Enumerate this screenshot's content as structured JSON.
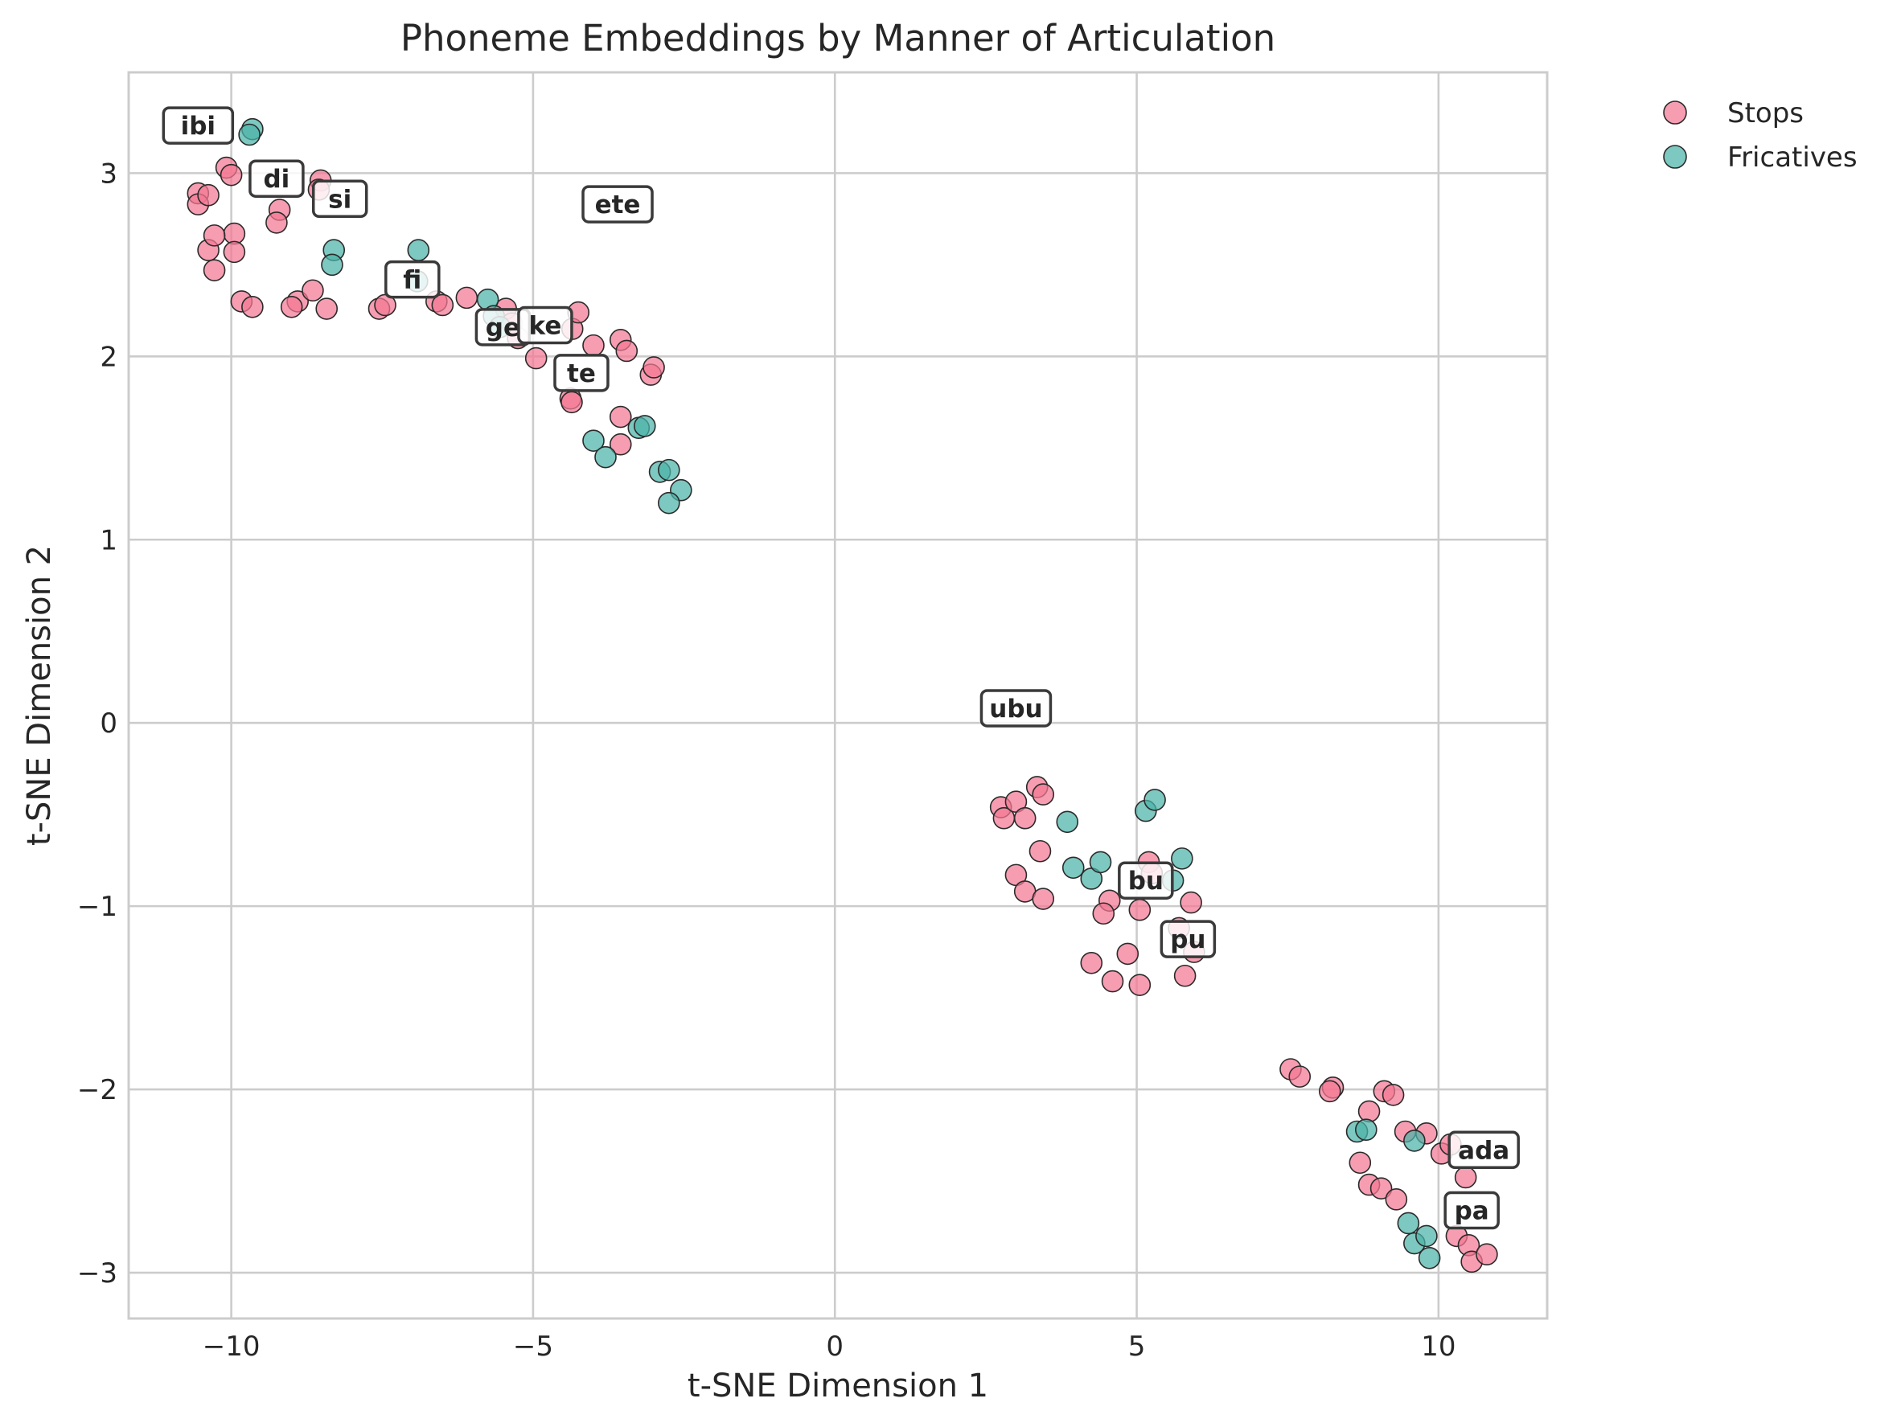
{
  "chart_data": {
    "type": "scatter",
    "title": "Phoneme Embeddings by Manner of Articulation",
    "xlabel": "t-SNE Dimension 1",
    "ylabel": "t-SNE Dimension 2",
    "xlim": [
      -11.7,
      11.8
    ],
    "ylim": [
      -3.25,
      3.55
    ],
    "xticks": [
      -10,
      -5,
      0,
      5,
      10
    ],
    "xtick_labels": [
      "−10",
      "−5",
      "0",
      "5",
      "10"
    ],
    "yticks": [
      -3,
      -2,
      -1,
      0,
      1,
      2,
      3
    ],
    "ytick_labels": [
      "−3",
      "−2",
      "−1",
      "0",
      "1",
      "2",
      "3"
    ],
    "grid": true,
    "legend_position": "outside-top-right",
    "series": [
      {
        "name": "Stops",
        "color": "#f47793",
        "points": [
          [
            -10.55,
            2.89
          ],
          [
            -10.55,
            2.83
          ],
          [
            -10.38,
            2.88
          ],
          [
            -10.08,
            3.03
          ],
          [
            -10.0,
            2.99
          ],
          [
            -9.95,
            2.67
          ],
          [
            -9.95,
            2.57
          ],
          [
            -10.38,
            2.58
          ],
          [
            -10.28,
            2.66
          ],
          [
            -10.28,
            2.47
          ],
          [
            -9.83,
            2.3
          ],
          [
            -9.65,
            2.27
          ],
          [
            -9.2,
            2.8
          ],
          [
            -9.25,
            2.73
          ],
          [
            -8.52,
            2.96
          ],
          [
            -8.55,
            2.91
          ],
          [
            -8.9,
            2.3
          ],
          [
            -9.0,
            2.27
          ],
          [
            -8.65,
            2.36
          ],
          [
            -8.42,
            2.26
          ],
          [
            -7.55,
            2.26
          ],
          [
            -7.45,
            2.28
          ],
          [
            -6.6,
            2.3
          ],
          [
            -6.5,
            2.28
          ],
          [
            -6.1,
            2.32
          ],
          [
            -5.45,
            2.26
          ],
          [
            -5.35,
            2.18
          ],
          [
            -5.25,
            2.1
          ],
          [
            -4.95,
            1.99
          ],
          [
            -4.35,
            2.15
          ],
          [
            -4.25,
            2.24
          ],
          [
            -4.0,
            2.06
          ],
          [
            -3.55,
            2.09
          ],
          [
            -3.45,
            2.03
          ],
          [
            -3.05,
            1.9
          ],
          [
            -3.0,
            1.94
          ],
          [
            -4.38,
            1.77
          ],
          [
            -4.36,
            1.75
          ],
          [
            -3.55,
            1.67
          ],
          [
            -3.55,
            1.52
          ],
          [
            2.75,
            -0.46
          ],
          [
            2.8,
            -0.52
          ],
          [
            3.0,
            -0.43
          ],
          [
            3.15,
            -0.52
          ],
          [
            3.35,
            -0.35
          ],
          [
            3.45,
            -0.39
          ],
          [
            3.4,
            -0.7
          ],
          [
            3.0,
            -0.83
          ],
          [
            3.15,
            -0.92
          ],
          [
            3.45,
            -0.96
          ],
          [
            4.55,
            -0.97
          ],
          [
            4.45,
            -1.04
          ],
          [
            5.05,
            -1.02
          ],
          [
            5.2,
            -0.76
          ],
          [
            5.25,
            -0.82
          ],
          [
            5.7,
            -1.12
          ],
          [
            5.9,
            -0.98
          ],
          [
            5.95,
            -1.25
          ],
          [
            4.85,
            -1.26
          ],
          [
            4.25,
            -1.31
          ],
          [
            4.6,
            -1.41
          ],
          [
            5.05,
            -1.43
          ],
          [
            5.8,
            -1.38
          ],
          [
            7.55,
            -1.89
          ],
          [
            7.7,
            -1.93
          ],
          [
            8.25,
            -1.99
          ],
          [
            8.2,
            -2.01
          ],
          [
            9.1,
            -2.01
          ],
          [
            9.25,
            -2.03
          ],
          [
            8.85,
            -2.12
          ],
          [
            9.45,
            -2.23
          ],
          [
            9.8,
            -2.24
          ],
          [
            10.05,
            -2.35
          ],
          [
            10.2,
            -2.3
          ],
          [
            10.45,
            -2.48
          ],
          [
            8.7,
            -2.4
          ],
          [
            8.85,
            -2.52
          ],
          [
            9.05,
            -2.54
          ],
          [
            9.3,
            -2.6
          ],
          [
            10.3,
            -2.8
          ],
          [
            10.5,
            -2.85
          ],
          [
            10.55,
            -2.94
          ],
          [
            10.8,
            -2.9
          ]
        ]
      },
      {
        "name": "Fricatives",
        "color": "#4bb3a7",
        "points": [
          [
            -9.65,
            3.24
          ],
          [
            -9.7,
            3.21
          ],
          [
            -8.3,
            2.58
          ],
          [
            -8.33,
            2.5
          ],
          [
            -6.9,
            2.58
          ],
          [
            -6.92,
            2.41
          ],
          [
            -5.75,
            2.31
          ],
          [
            -5.65,
            2.22
          ],
          [
            -5.55,
            2.16
          ],
          [
            -4.0,
            1.54
          ],
          [
            -3.8,
            1.45
          ],
          [
            -3.25,
            1.61
          ],
          [
            -3.15,
            1.62
          ],
          [
            -2.9,
            1.37
          ],
          [
            -2.75,
            1.38
          ],
          [
            -2.55,
            1.27
          ],
          [
            -2.75,
            1.2
          ],
          [
            3.85,
            -0.54
          ],
          [
            3.95,
            -0.79
          ],
          [
            4.25,
            -0.85
          ],
          [
            4.4,
            -0.76
          ],
          [
            5.15,
            -0.48
          ],
          [
            5.3,
            -0.42
          ],
          [
            5.75,
            -0.74
          ],
          [
            5.6,
            -0.86
          ],
          [
            8.65,
            -2.23
          ],
          [
            8.8,
            -2.22
          ],
          [
            9.6,
            -2.28
          ],
          [
            9.5,
            -2.73
          ],
          [
            9.6,
            -2.84
          ],
          [
            9.8,
            -2.8
          ],
          [
            9.85,
            -2.92
          ]
        ]
      }
    ],
    "annotations": [
      {
        "text": "ibi",
        "x": -10.55,
        "y": 3.26
      },
      {
        "text": "di",
        "x": -9.25,
        "y": 2.97
      },
      {
        "text": "si",
        "x": -8.2,
        "y": 2.86
      },
      {
        "text": "ete",
        "x": -3.6,
        "y": 2.83
      },
      {
        "text": "fi",
        "x": -7.0,
        "y": 2.42
      },
      {
        "text": "ge",
        "x": -5.5,
        "y": 2.16
      },
      {
        "text": "ke",
        "x": -4.8,
        "y": 2.17
      },
      {
        "text": "te",
        "x": -4.2,
        "y": 1.91
      },
      {
        "text": "ubu",
        "x": 3.0,
        "y": 0.08
      },
      {
        "text": "bu",
        "x": 5.15,
        "y": -0.86
      },
      {
        "text": "pu",
        "x": 5.85,
        "y": -1.18
      },
      {
        "text": "ada",
        "x": 10.75,
        "y": -2.33
      },
      {
        "text": "pa",
        "x": 10.55,
        "y": -2.66
      }
    ]
  }
}
